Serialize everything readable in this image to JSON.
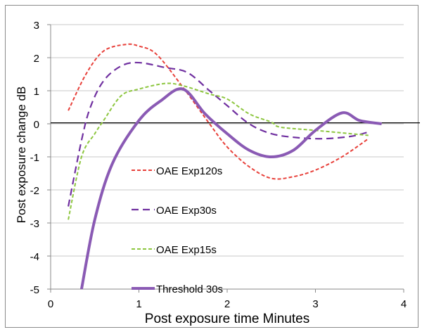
{
  "chart_data": {
    "type": "line",
    "title": "",
    "xlabel": "Post exposure time  Minutes",
    "ylabel": "Post exposure change dB",
    "xlim": [
      0,
      4
    ],
    "ylim": [
      -5,
      3
    ],
    "xticks": [
      "0",
      "1",
      "2",
      "3",
      "4"
    ],
    "yticks": [
      "3",
      "2",
      "1",
      "0",
      "-1",
      "-2",
      "-3",
      "-4",
      "-5"
    ],
    "grid": true,
    "legend_placement": "center-left inside plot",
    "series": [
      {
        "name": "OAE Exp120s",
        "color": "#E8403A",
        "style": "short-dash",
        "x": [
          0.2,
          0.4,
          0.6,
          0.85,
          1.0,
          1.2,
          1.5,
          1.8,
          2.0,
          2.25,
          2.5,
          2.75,
          3.0,
          3.3,
          3.6
        ],
        "y": [
          0.4,
          1.5,
          2.2,
          2.4,
          2.35,
          2.1,
          1.1,
          0.0,
          -0.7,
          -1.3,
          -1.65,
          -1.6,
          -1.4,
          -1.0,
          -0.45
        ]
      },
      {
        "name": "OAE Exp30s",
        "color": "#7030A0",
        "style": "long-dash",
        "x": [
          0.2,
          0.35,
          0.45,
          0.6,
          0.8,
          1.0,
          1.3,
          1.55,
          1.8,
          2.0,
          2.25,
          2.5,
          2.8,
          3.1,
          3.4,
          3.6
        ],
        "y": [
          -2.5,
          -0.5,
          0.5,
          1.3,
          1.75,
          1.85,
          1.7,
          1.55,
          1.0,
          0.55,
          0.0,
          -0.3,
          -0.42,
          -0.45,
          -0.38,
          -0.25
        ]
      },
      {
        "name": "OAE Exp15s",
        "color": "#8DC63F",
        "style": "short-dash",
        "x": [
          0.2,
          0.35,
          0.5,
          0.6,
          0.8,
          1.0,
          1.3,
          1.5,
          1.8,
          2.0,
          2.25,
          2.5,
          2.6,
          3.0,
          3.6
        ],
        "y": [
          -2.9,
          -1.0,
          -0.3,
          0.1,
          0.85,
          1.05,
          1.22,
          1.15,
          0.9,
          0.75,
          0.3,
          0.05,
          -0.1,
          -0.2,
          -0.35
        ]
      },
      {
        "name": "Threshold 30s",
        "color": "#8A5AB4",
        "style": "solid-thick",
        "x": [
          0.35,
          0.5,
          0.7,
          1.0,
          1.25,
          1.5,
          1.75,
          2.0,
          2.25,
          2.5,
          2.75,
          3.0,
          3.3,
          3.5,
          3.75
        ],
        "y": [
          -5.0,
          -2.9,
          -1.2,
          0.1,
          0.7,
          1.05,
          0.3,
          -0.3,
          -0.8,
          -1.0,
          -0.8,
          -0.2,
          0.33,
          0.1,
          0.0
        ]
      }
    ]
  }
}
